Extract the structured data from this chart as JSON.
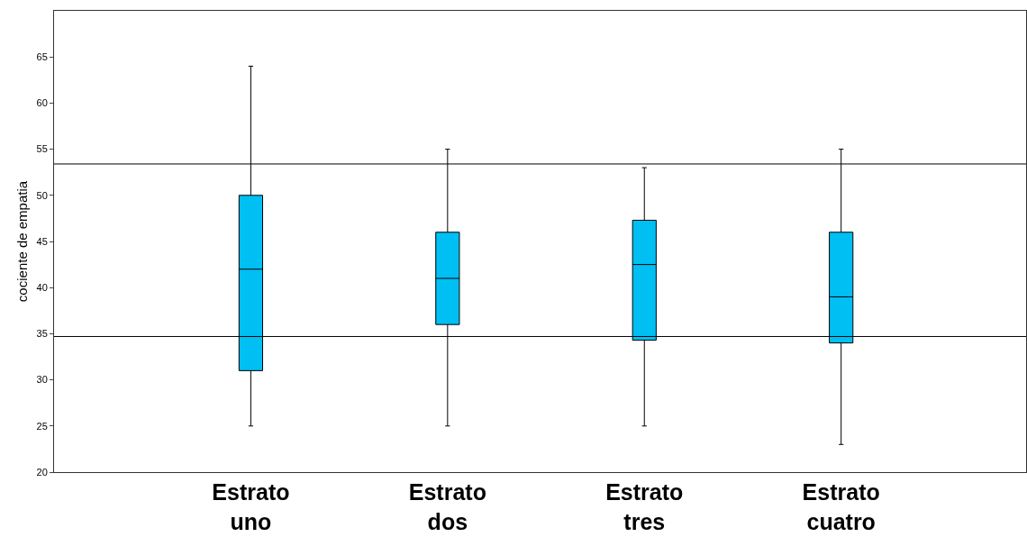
{
  "chart_data": {
    "type": "box",
    "ylabel": "cociente de empatia",
    "categories": [
      "Estrato uno",
      "Estrato dos",
      "Estrato tres",
      "Estrato cuatro"
    ],
    "boxes": [
      {
        "low": 25,
        "q1": 31,
        "median": 42,
        "q3": 50,
        "high": 64
      },
      {
        "low": 25,
        "q1": 36,
        "median": 41,
        "q3": 46,
        "high": 55
      },
      {
        "low": 25,
        "q1": 34.3,
        "median": 42.5,
        "q3": 47.3,
        "high": 53
      },
      {
        "low": 23,
        "q1": 34,
        "median": 39,
        "q3": 46,
        "high": 55
      }
    ],
    "color": "#00bff3",
    "ylim": [
      20,
      70
    ],
    "yticks": [
      20,
      25,
      30,
      35,
      40,
      45,
      50,
      55,
      60,
      65
    ],
    "ref_lines": [
      {
        "axis": "y",
        "value": 53.4
      },
      {
        "axis": "y",
        "value": 34.7
      }
    ]
  }
}
